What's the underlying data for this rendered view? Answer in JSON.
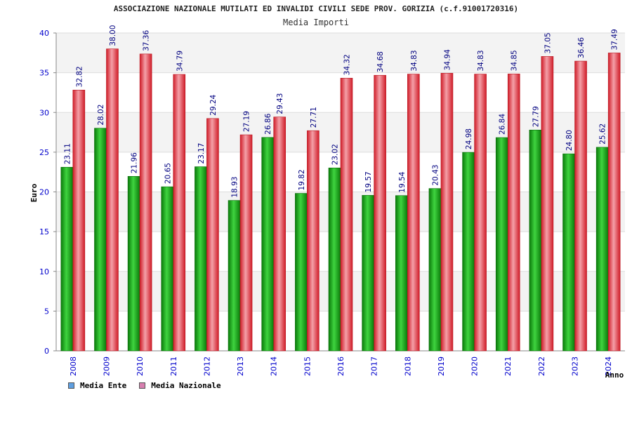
{
  "chart_data": {
    "type": "bar",
    "title": "ASSOCIAZIONE NAZIONALE MUTILATI ED INVALIDI CIVILI SEDE PROV. GORIZIA (c.f.91001720316)",
    "subtitle": "Media Importi",
    "xlabel": "Anno",
    "ylabel": "Euro",
    "ylim": [
      0,
      40
    ],
    "yticks": [
      0,
      5,
      10,
      15,
      20,
      25,
      30,
      35,
      40
    ],
    "grid": true,
    "legend_position": "bottom-left",
    "categories": [
      "2008",
      "2009",
      "2010",
      "2011",
      "2012",
      "2013",
      "2014",
      "2015",
      "2016",
      "2017",
      "2018",
      "2019",
      "2020",
      "2021",
      "2022",
      "2023",
      "2024"
    ],
    "series": [
      {
        "name": "Media Ente",
        "color": "#1ea01e",
        "legend_color": "#5f9fe0",
        "values": [
          23.11,
          28.02,
          21.96,
          20.65,
          23.17,
          18.93,
          26.86,
          19.82,
          23.02,
          19.57,
          19.54,
          20.43,
          24.98,
          26.84,
          27.79,
          24.8,
          25.62
        ],
        "labels": [
          "23.11",
          "28.02",
          "21.96",
          "20.65",
          "23.17",
          "18.93",
          "26.86",
          "19.82",
          "23.02",
          "19.57",
          "19.54",
          "20.43",
          "24.98",
          "26.84",
          "27.79",
          "24.80",
          "25.62"
        ]
      },
      {
        "name": "Media Nazionale",
        "color": "#e8303a",
        "legend_color": "#d880b0",
        "values": [
          32.82,
          38.0,
          37.36,
          34.79,
          29.24,
          27.19,
          29.43,
          27.71,
          34.32,
          34.68,
          34.83,
          34.94,
          34.83,
          34.85,
          37.05,
          36.46,
          37.49
        ],
        "labels": [
          "32.82",
          "38.00",
          "37.36",
          "34.79",
          "29.24",
          "27.19",
          "29.43",
          "27.71",
          "34.32",
          "34.68",
          "34.83",
          "34.94",
          "34.83",
          "34.85",
          "37.05",
          "36.46",
          "37.49"
        ]
      }
    ]
  }
}
